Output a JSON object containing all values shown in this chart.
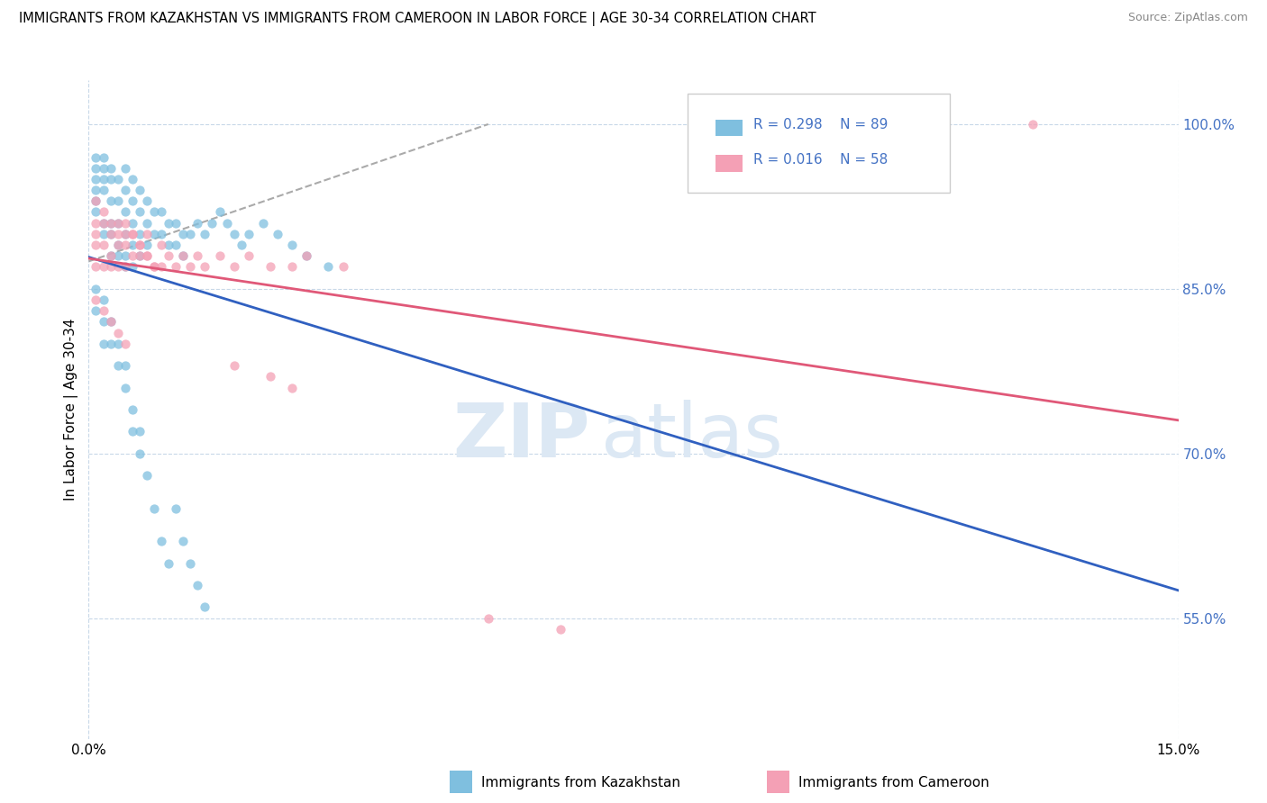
{
  "title": "IMMIGRANTS FROM KAZAKHSTAN VS IMMIGRANTS FROM CAMEROON IN LABOR FORCE | AGE 30-34 CORRELATION CHART",
  "source": "Source: ZipAtlas.com",
  "ylabel": "In Labor Force | Age 30-34",
  "ytick_vals": [
    0.55,
    0.7,
    0.85,
    1.0
  ],
  "xrange": [
    0.0,
    0.15
  ],
  "yrange": [
    0.44,
    1.04
  ],
  "legend_r1": "R = 0.298",
  "legend_n1": "N = 89",
  "legend_r2": "R = 0.016",
  "legend_n2": "N = 58",
  "label1": "Immigrants from Kazakhstan",
  "label2": "Immigrants from Cameroon",
  "color1": "#7fbfdf",
  "color2": "#f4a0b5",
  "line1_color": "#3060c0",
  "line2_color": "#e05878",
  "kaz_x": [
    0.001,
    0.001,
    0.001,
    0.001,
    0.001,
    0.001,
    0.002,
    0.002,
    0.002,
    0.002,
    0.002,
    0.002,
    0.003,
    0.003,
    0.003,
    0.003,
    0.003,
    0.003,
    0.004,
    0.004,
    0.004,
    0.004,
    0.004,
    0.005,
    0.005,
    0.005,
    0.005,
    0.005,
    0.005,
    0.006,
    0.006,
    0.006,
    0.006,
    0.006,
    0.007,
    0.007,
    0.007,
    0.007,
    0.008,
    0.008,
    0.008,
    0.009,
    0.009,
    0.01,
    0.01,
    0.011,
    0.011,
    0.012,
    0.012,
    0.013,
    0.013,
    0.014,
    0.015,
    0.016,
    0.017,
    0.018,
    0.019,
    0.02,
    0.021,
    0.022,
    0.024,
    0.026,
    0.028,
    0.03,
    0.033,
    0.001,
    0.001,
    0.002,
    0.002,
    0.002,
    0.003,
    0.003,
    0.004,
    0.004,
    0.005,
    0.005,
    0.006,
    0.006,
    0.007,
    0.007,
    0.008,
    0.009,
    0.01,
    0.011,
    0.012,
    0.013,
    0.014,
    0.015,
    0.016
  ],
  "kaz_y": [
    0.97,
    0.96,
    0.95,
    0.94,
    0.93,
    0.92,
    0.97,
    0.96,
    0.95,
    0.94,
    0.91,
    0.9,
    0.96,
    0.95,
    0.93,
    0.91,
    0.9,
    0.88,
    0.95,
    0.93,
    0.91,
    0.89,
    0.88,
    0.96,
    0.94,
    0.92,
    0.9,
    0.88,
    0.87,
    0.95,
    0.93,
    0.91,
    0.89,
    0.87,
    0.94,
    0.92,
    0.9,
    0.88,
    0.93,
    0.91,
    0.89,
    0.92,
    0.9,
    0.92,
    0.9,
    0.91,
    0.89,
    0.91,
    0.89,
    0.9,
    0.88,
    0.9,
    0.91,
    0.9,
    0.91,
    0.92,
    0.91,
    0.9,
    0.89,
    0.9,
    0.91,
    0.9,
    0.89,
    0.88,
    0.87,
    0.85,
    0.83,
    0.84,
    0.82,
    0.8,
    0.82,
    0.8,
    0.8,
    0.78,
    0.78,
    0.76,
    0.74,
    0.72,
    0.72,
    0.7,
    0.68,
    0.65,
    0.62,
    0.6,
    0.65,
    0.62,
    0.6,
    0.58,
    0.56
  ],
  "cam_x": [
    0.001,
    0.001,
    0.001,
    0.001,
    0.002,
    0.002,
    0.002,
    0.003,
    0.003,
    0.003,
    0.004,
    0.004,
    0.004,
    0.005,
    0.005,
    0.005,
    0.006,
    0.006,
    0.007,
    0.007,
    0.008,
    0.008,
    0.009,
    0.01,
    0.01,
    0.011,
    0.012,
    0.013,
    0.014,
    0.015,
    0.016,
    0.018,
    0.02,
    0.022,
    0.025,
    0.028,
    0.03,
    0.035,
    0.001,
    0.002,
    0.003,
    0.004,
    0.005,
    0.02,
    0.025,
    0.028,
    0.055,
    0.065,
    0.13,
    0.001,
    0.002,
    0.003,
    0.004,
    0.005,
    0.006,
    0.007,
    0.008,
    0.009
  ],
  "cam_y": [
    0.91,
    0.9,
    0.89,
    0.87,
    0.91,
    0.89,
    0.87,
    0.9,
    0.88,
    0.87,
    0.91,
    0.89,
    0.87,
    0.9,
    0.89,
    0.87,
    0.9,
    0.88,
    0.89,
    0.88,
    0.9,
    0.88,
    0.87,
    0.89,
    0.87,
    0.88,
    0.87,
    0.88,
    0.87,
    0.88,
    0.87,
    0.88,
    0.87,
    0.88,
    0.87,
    0.87,
    0.88,
    0.87,
    0.84,
    0.83,
    0.82,
    0.81,
    0.8,
    0.78,
    0.77,
    0.76,
    0.55,
    0.54,
    1.0,
    0.93,
    0.92,
    0.91,
    0.9,
    0.91,
    0.9,
    0.89,
    0.88,
    0.87
  ],
  "trendline_x0": 0.0,
  "trendline_x1": 0.055,
  "trendline_y0": 0.875,
  "trendline_y1": 1.0
}
